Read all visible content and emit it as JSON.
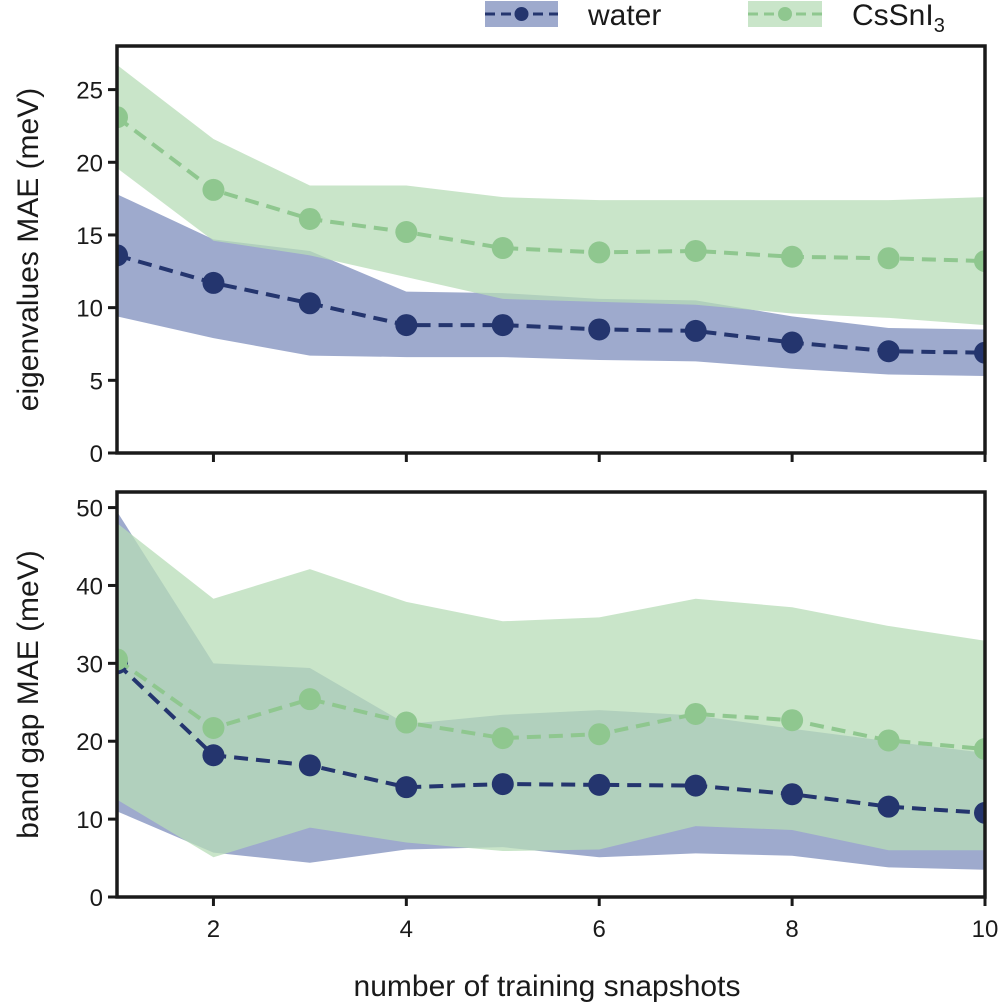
{
  "chart_data": {
    "type": "line",
    "colors": {
      "water": "#24356e",
      "water_band": "#8d9bc4",
      "cssni3": "#8fc78f",
      "cssni3_band": "#b7dcb7",
      "axis": "#1a1a1a"
    },
    "legend": {
      "placement": "top-right",
      "entries": [
        {
          "series": "water",
          "label": "water"
        },
        {
          "series": "cssni3",
          "label": "CsSnI",
          "subscript": "3"
        }
      ]
    },
    "xlabel": "number of training snapshots",
    "xlim": [
      1,
      10
    ],
    "xticks": [
      2,
      4,
      6,
      8,
      10
    ],
    "panels": [
      {
        "id": "eigenvalues",
        "ylabel": "eigenvalues MAE (meV)",
        "ylim": [
          0,
          28
        ],
        "yticks": [
          0,
          5,
          10,
          15,
          20,
          25
        ],
        "series": [
          {
            "name": "water",
            "x": [
              1,
              2,
              3,
              4,
              5,
              6,
              7,
              8,
              9,
              10
            ],
            "y": [
              13.6,
              11.7,
              10.3,
              8.8,
              8.8,
              8.5,
              8.4,
              7.6,
              7.0,
              6.9
            ],
            "lower": [
              9.4,
              7.9,
              6.7,
              6.6,
              6.6,
              6.4,
              6.3,
              5.8,
              5.4,
              5.3
            ],
            "upper": [
              17.8,
              14.7,
              13.9,
              11.1,
              11.0,
              10.6,
              10.5,
              9.4,
              8.6,
              8.5
            ]
          },
          {
            "name": "cssni3",
            "x": [
              1,
              2,
              3,
              4,
              5,
              6,
              7,
              8,
              9,
              10
            ],
            "y": [
              23.1,
              18.1,
              16.1,
              15.2,
              14.1,
              13.8,
              13.9,
              13.5,
              13.4,
              13.2
            ],
            "lower": [
              19.6,
              14.6,
              13.6,
              12.1,
              10.6,
              10.4,
              10.2,
              9.6,
              9.3,
              8.8
            ],
            "upper": [
              26.7,
              21.6,
              18.4,
              18.4,
              17.6,
              17.4,
              17.4,
              17.4,
              17.4,
              17.6
            ]
          }
        ]
      },
      {
        "id": "bandgap",
        "ylabel": "band gap MAE (meV)",
        "ylim": [
          0,
          52
        ],
        "yticks": [
          0,
          10,
          20,
          30,
          40,
          50
        ],
        "series": [
          {
            "name": "water",
            "x": [
              1,
              2,
              3,
              4,
              5,
              6,
              7,
              8,
              9,
              10
            ],
            "y": [
              30.0,
              18.2,
              16.9,
              14.1,
              14.5,
              14.4,
              14.3,
              13.2,
              11.6,
              10.8
            ],
            "lower": [
              11.0,
              5.7,
              4.4,
              6.1,
              6.4,
              5.1,
              5.6,
              5.3,
              3.8,
              3.5
            ],
            "upper": [
              49.5,
              30.0,
              29.4,
              22.2,
              23.4,
              24.0,
              23.3,
              21.6,
              20.0,
              18.5
            ]
          },
          {
            "name": "cssni3",
            "x": [
              1,
              2,
              3,
              4,
              5,
              6,
              7,
              8,
              9,
              10
            ],
            "y": [
              30.5,
              21.7,
              25.4,
              22.4,
              20.4,
              20.9,
              23.5,
              22.7,
              20.1,
              19.0
            ],
            "lower": [
              12.5,
              5.1,
              8.9,
              7.0,
              5.9,
              6.1,
              9.1,
              8.6,
              6.0,
              6.0
            ],
            "upper": [
              48.0,
              38.3,
              42.1,
              37.9,
              35.4,
              35.9,
              38.3,
              37.2,
              34.8,
              32.9
            ]
          }
        ]
      }
    ]
  }
}
